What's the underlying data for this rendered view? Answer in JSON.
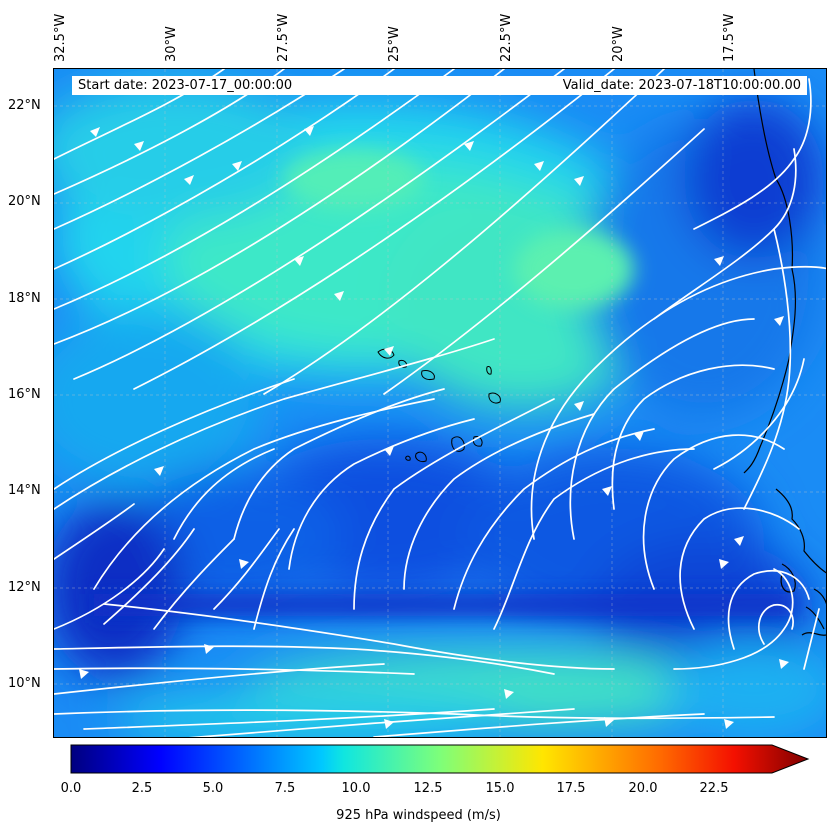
{
  "map": {
    "start_date": "Start date: 2023-07-17_00:00:00",
    "valid_date": "Valid_date: 2023-07-18T10:00:00.00",
    "lon_labels": [
      "32.5°W",
      "30°W",
      "27.5°W",
      "25°W",
      "22.5°W",
      "20°W",
      "17.5°W"
    ],
    "lat_labels": [
      "22°N",
      "20°N",
      "18°N",
      "16°N",
      "14°N",
      "12°N",
      "10°N"
    ],
    "extent": {
      "lon_min": -32.5,
      "lon_max": -15.0,
      "lat_min": 8.9,
      "lat_max": 22.8
    },
    "field": "windspeed",
    "streamline_color": "#ffffff",
    "coastline_color": "#000000"
  },
  "colorbar": {
    "label": "925 hPa windspeed (m/s)",
    "ticks": [
      "0.0",
      "2.5",
      "5.0",
      "7.5",
      "10.0",
      "12.5",
      "15.0",
      "17.5",
      "20.0",
      "22.5"
    ],
    "vmin": 0,
    "vmax": 25,
    "colormap": "jet",
    "extend": "max"
  }
}
